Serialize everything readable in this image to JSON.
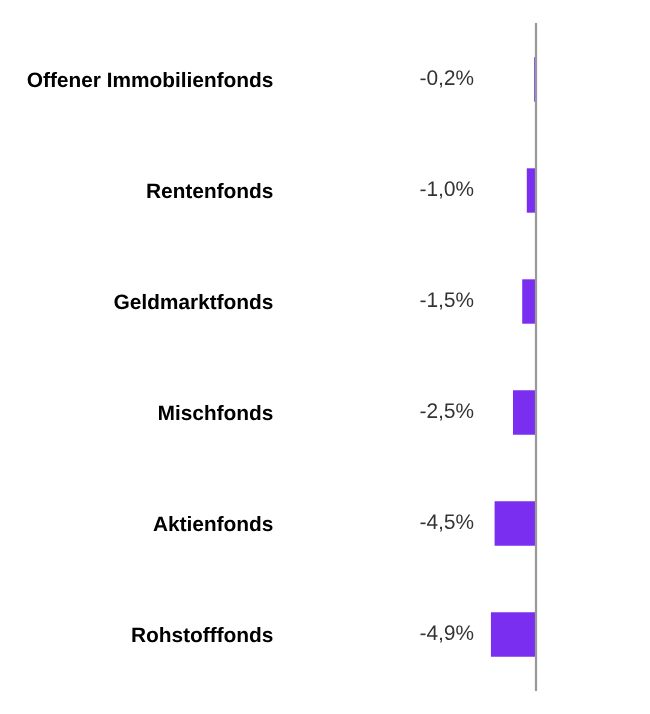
{
  "chart_data": {
    "type": "bar",
    "orientation": "horizontal",
    "categories": [
      "Offener Immobilienfonds",
      "Rentenfonds",
      "Geldmarktfonds",
      "Mischfonds",
      "Aktienfonds",
      "Rohstofffonds"
    ],
    "values": [
      -0.2,
      -1.0,
      -1.5,
      -2.5,
      -4.5,
      -4.9
    ],
    "value_labels": [
      "-0,2%",
      "-1,0%",
      "-1,5%",
      "-2,5%",
      "-4,5%",
      "-4,9%"
    ],
    "color": "#7a2ff0",
    "xlim": [
      -5,
      0
    ],
    "tick_labels": "y",
    "grid": false,
    "legend": false
  }
}
